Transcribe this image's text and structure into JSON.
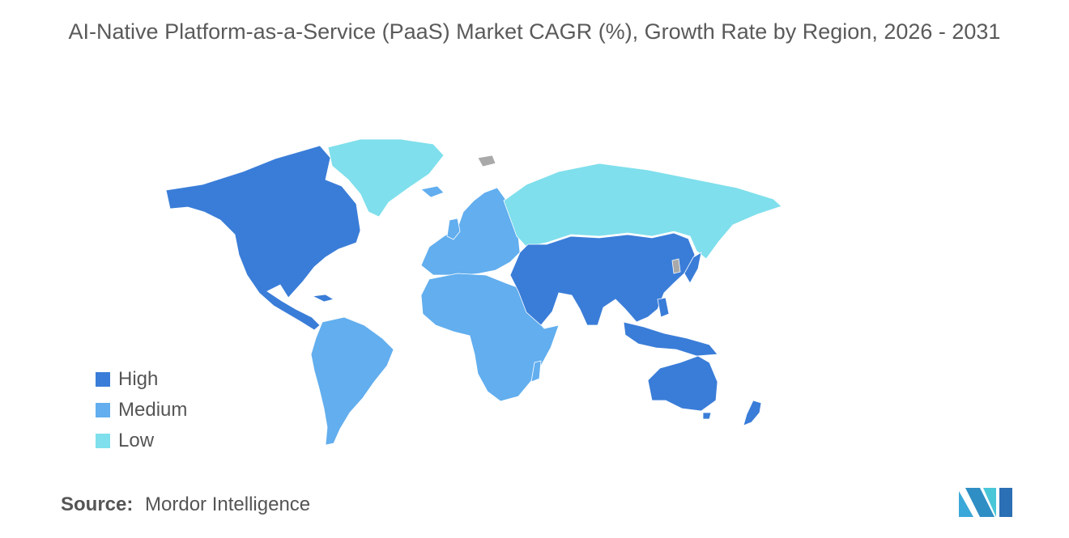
{
  "title": "AI-Native Platform-as-a-Service (PaaS) Market CAGR (%), Growth Rate by Region, 2026 - 2031",
  "legend": [
    {
      "label": "High",
      "color": "#3a7dd8"
    },
    {
      "label": "Medium",
      "color": "#62aeee"
    },
    {
      "label": "Low",
      "color": "#7fdfec"
    }
  ],
  "no_data_color": "#a9a9a9",
  "regions": {
    "north_america": "High",
    "south_america": "Medium",
    "europe": "Medium",
    "africa": "Medium",
    "middle_east": "High",
    "asia_pacific": "High",
    "russia": "Low",
    "greenland": "Low"
  },
  "source": {
    "label": "Source:",
    "value": "Mordor Intelligence"
  },
  "logo_icon": "mordor-intelligence-logo-icon"
}
